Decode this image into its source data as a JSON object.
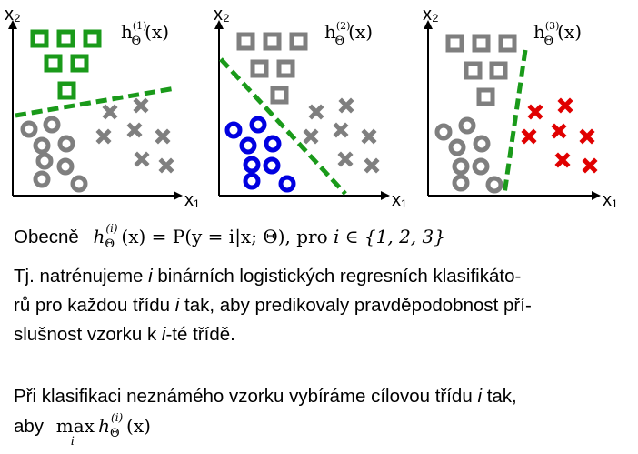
{
  "plots": [
    {
      "y_label": "x₂",
      "x_label": "x₁",
      "hyp_main": "h",
      "hyp_sup": "(1)",
      "hyp_sub": "Θ",
      "hyp_arg": "(x)",
      "highlight": "squares",
      "highlight_color": "#1a9a1a"
    },
    {
      "y_label": "x₂",
      "x_label": "x₁",
      "hyp_main": "h",
      "hyp_sup": "(2)",
      "hyp_sub": "Θ",
      "hyp_arg": "(x)",
      "highlight": "circles",
      "highlight_color": "#0000e0"
    },
    {
      "y_label": "x₂",
      "x_label": "x₁",
      "hyp_main": "h",
      "hyp_sup": "(3)",
      "hyp_sub": "Θ",
      "hyp_arg": "(x)",
      "highlight": "crosses",
      "highlight_color": "#e00000"
    }
  ],
  "colors": {
    "gray": "#7f7f7f",
    "boundary": "#1a9a1a"
  },
  "text": {
    "general_word": "Obecně",
    "general_formula_h": "h",
    "general_formula_sup": "(i)",
    "general_formula_sub": "Θ",
    "general_formula_rest": "(x) = P(y = i|x; Θ),",
    "general_pro": "pro",
    "general_set": "i ∈ {1, 2, 3}",
    "p1_l1_a": "Tj. natrénujeme ",
    "p1_l1_i": "i",
    "p1_l1_b": " binárních logistických regresních klasifikáto-",
    "p1_l2_a": "rů pro každou třídu ",
    "p1_l2_i": "i",
    "p1_l2_b": " tak, aby predikovaly pravděpodobnost pří-",
    "p1_l3_a": "slušnost vzorku k ",
    "p1_l3_i": "i",
    "p1_l3_b": "-té třídě.",
    "p2_l1_a": "Při klasifikaci neznámého vzorku vybíráme cílovou třídu ",
    "p2_l1_i": "i",
    "p2_l1_b": " tak,",
    "p2_l2_a": "aby",
    "p2_max": "max",
    "p2_max_sub": "i",
    "p2_h": "h",
    "p2_sup": "(i)",
    "p2_sub": "Θ",
    "p2_arg": "(x)"
  }
}
